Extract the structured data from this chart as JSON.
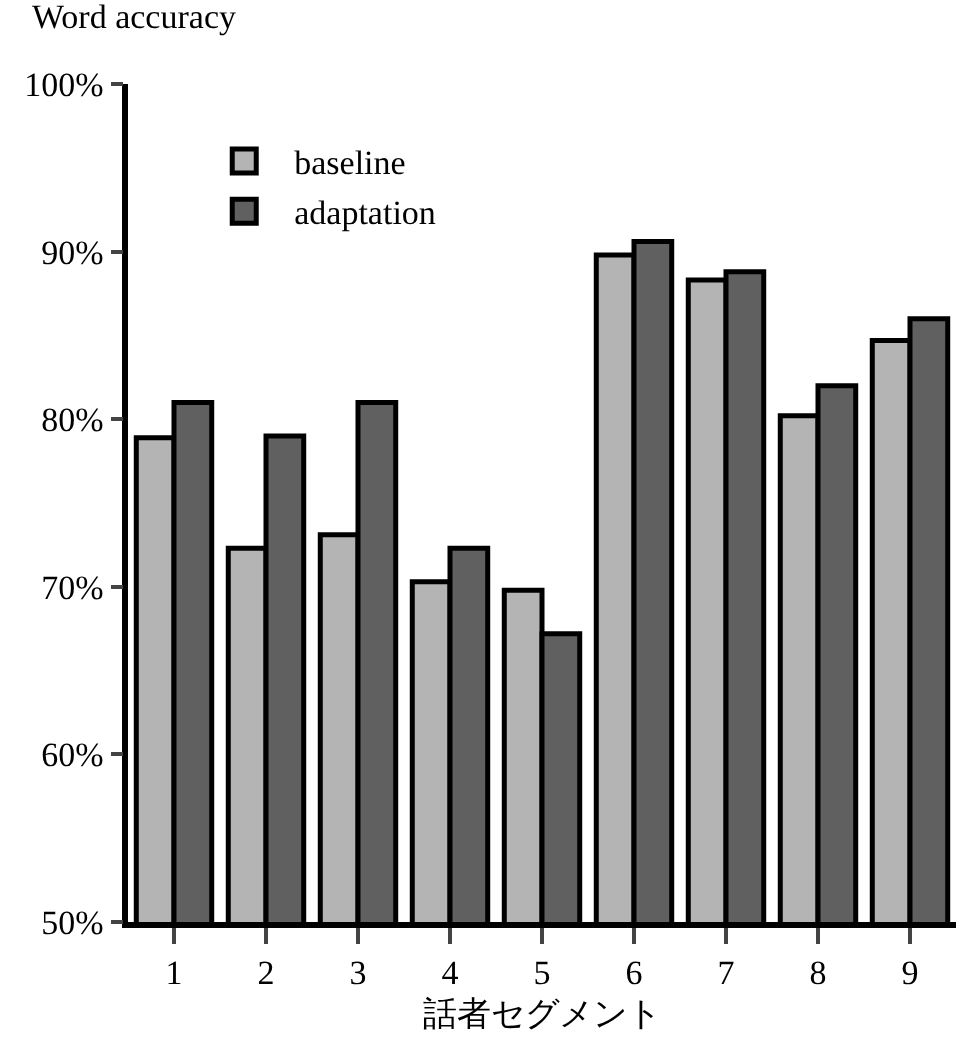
{
  "chart_data": {
    "type": "bar",
    "ylabel": "Word accuracy",
    "xlabel": "話者セグメント",
    "categories": [
      "1",
      "2",
      "3",
      "4",
      "5",
      "6",
      "7",
      "8",
      "9"
    ],
    "series": [
      {
        "name": "baseline",
        "color": "#b4b4b4",
        "values": [
          78.9,
          72.3,
          73.1,
          70.3,
          69.8,
          89.8,
          88.3,
          80.2,
          84.7
        ]
      },
      {
        "name": "adaptation",
        "color": "#606060",
        "values": [
          81.0,
          79.0,
          81.0,
          72.3,
          67.2,
          90.6,
          88.8,
          82.0,
          86.0
        ]
      }
    ],
    "ylim": [
      50,
      100
    ],
    "yticks": [
      {
        "value": 50,
        "label": "50%"
      },
      {
        "value": 60,
        "label": "60%"
      },
      {
        "value": 70,
        "label": "70%"
      },
      {
        "value": 80,
        "label": "80%"
      },
      {
        "value": 90,
        "label": "90%"
      },
      {
        "value": 100,
        "label": "100%"
      }
    ],
    "grid": false,
    "legend": "top left"
  }
}
